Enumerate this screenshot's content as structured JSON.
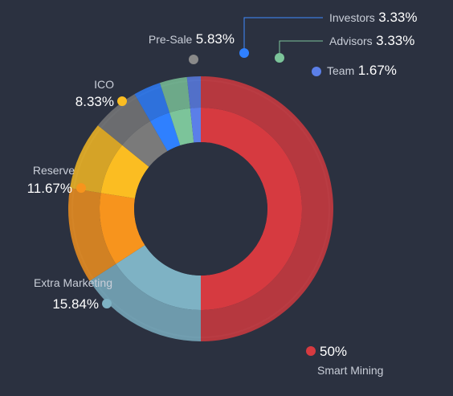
{
  "chart_data": {
    "type": "pie",
    "variant": "donut",
    "title": "",
    "legend": "labels-around",
    "slices": [
      {
        "name": "Smart Mining",
        "value": 50,
        "value_label": "50%",
        "color": "#d63a40"
      },
      {
        "name": "Extra Marketing",
        "value": 15.84,
        "value_label": "15.84%",
        "color": "#7eb2c4"
      },
      {
        "name": "Reserve",
        "value": 11.67,
        "value_label": "11.67%",
        "color": "#f7941d"
      },
      {
        "name": "ICO",
        "value": 8.33,
        "value_label": "8.33%",
        "color": "#fbbd22"
      },
      {
        "name": "Pre-Sale",
        "value": 5.83,
        "value_label": "5.83%",
        "color": "#7a7a7a"
      },
      {
        "name": "Investors",
        "value": 3.33,
        "value_label": "3.33%",
        "color": "#2f80ff"
      },
      {
        "name": "Advisors",
        "value": 3.33,
        "value_label": "3.33%",
        "color": "#7cc49a"
      },
      {
        "name": "Team",
        "value": 1.67,
        "value_label": "1.67%",
        "color": "#5b7fe8"
      }
    ]
  }
}
